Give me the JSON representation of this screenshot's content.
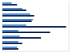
{
  "chart_data": {
    "type": "bar",
    "orientation": "horizontal",
    "categories": [
      null,
      null,
      null,
      null,
      null,
      null,
      null,
      null,
      null
    ],
    "series": [
      {
        "color": "#4f8fd8",
        "values": [
          14,
          30,
          42,
          46,
          36,
          24,
          26,
          24,
          22
        ]
      },
      {
        "color": "#1b2f5e",
        "values": [
          22,
          36,
          48,
          44,
          96,
          72,
          58,
          30,
          24
        ]
      }
    ],
    "xlim": [
      0,
      100
    ],
    "xticks": [
      0,
      25,
      50,
      75,
      100
    ],
    "grid": true,
    "tick_labels": false
  }
}
